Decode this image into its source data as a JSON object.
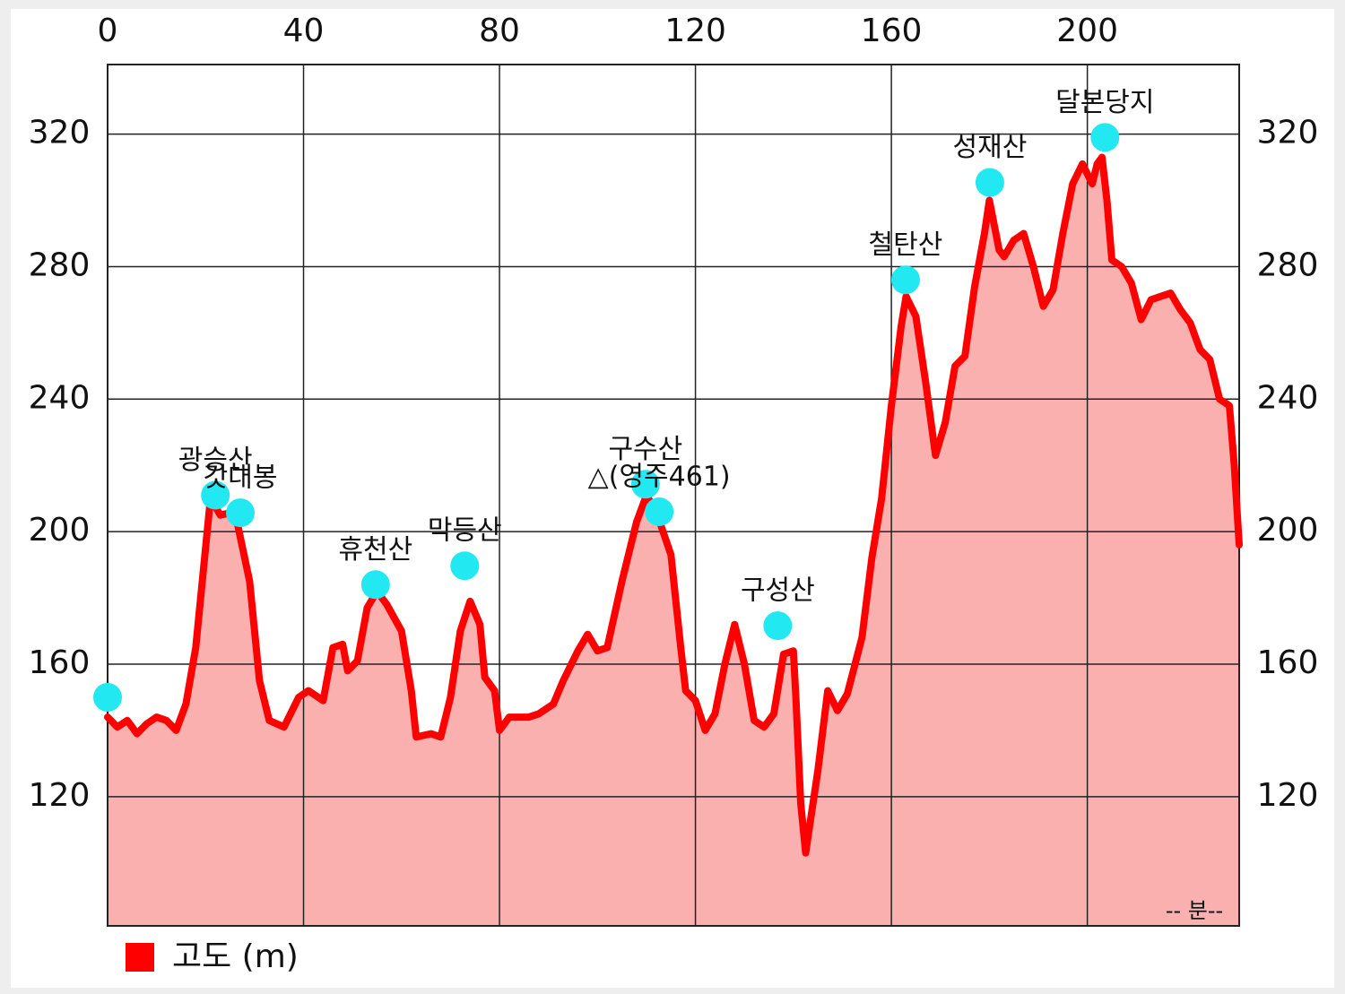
{
  "chart_data": {
    "type": "area",
    "xlim": [
      0,
      231
    ],
    "ylim": [
      81,
      341
    ],
    "xticks": [
      0,
      40,
      80,
      120,
      160,
      200
    ],
    "yticks": [
      120,
      160,
      200,
      240,
      280,
      320
    ],
    "x_label": "-- 분--",
    "grid": true,
    "legend": "bottom-left",
    "series": [
      {
        "name": "고도 (m)",
        "color": "#ff0000",
        "fill_color": "#fbb0b0",
        "x": [
          0,
          2,
          4,
          6,
          8,
          10,
          12,
          14,
          16,
          18,
          21,
          23,
          26,
          29,
          31,
          33,
          36,
          39,
          41,
          44,
          46,
          48,
          49,
          51,
          53,
          55,
          57,
          60,
          62,
          63,
          66,
          68,
          70,
          72,
          74,
          76,
          77,
          79,
          80,
          82,
          86,
          88,
          91,
          93,
          96,
          98,
          100,
          102,
          105,
          108,
          110,
          112,
          115,
          117,
          118,
          120,
          122,
          124,
          126,
          128,
          130,
          132,
          134,
          136,
          138,
          140,
          140.5,
          141.5,
          142.5,
          144,
          145,
          147,
          149,
          151,
          154,
          156,
          158,
          160,
          162,
          163,
          165,
          167,
          169,
          171,
          173,
          175,
          177,
          179,
          180,
          182,
          183,
          185,
          187,
          189,
          191,
          193,
          195,
          197,
          199,
          201,
          202,
          203,
          204,
          205,
          207,
          209,
          211,
          213,
          215,
          217,
          219,
          221,
          223,
          225,
          227,
          229,
          230,
          231
        ],
        "values": [
          144,
          141,
          143,
          139,
          142,
          144,
          143,
          140,
          148,
          165,
          210,
          205,
          206,
          185,
          155,
          143,
          141,
          150,
          152,
          149,
          165,
          166,
          158,
          161,
          177,
          182,
          178,
          170,
          152,
          138,
          139,
          138,
          150,
          170,
          179,
          172,
          156,
          152,
          140,
          144,
          144,
          145,
          148,
          155,
          164,
          169,
          164,
          165,
          185,
          203,
          211,
          206,
          193,
          165,
          152,
          149,
          140,
          145,
          160,
          172,
          160,
          143,
          141,
          145,
          163,
          164,
          150,
          118,
          103,
          118,
          128,
          152,
          146,
          151,
          168,
          192,
          210,
          238,
          262,
          271,
          265,
          245,
          223,
          233,
          250,
          253,
          274,
          290,
          300,
          285,
          283,
          288,
          290,
          280,
          268,
          273,
          290,
          305,
          311,
          305,
          311,
          313,
          300,
          282,
          280,
          275,
          264,
          270,
          271,
          272,
          267,
          263,
          255,
          252,
          240,
          238,
          220,
          196
        ]
      }
    ],
    "points": {
      "color": "#22e8f2",
      "x": [
        0,
        22,
        27.1,
        54.7,
        72.9,
        109.8,
        112.6,
        136.8,
        162.9,
        180.1,
        203.6
      ],
      "values": [
        150,
        211,
        205.7,
        184,
        189.7,
        214.3,
        206,
        171.6,
        276,
        305.4,
        319
      ],
      "labels": [
        null,
        "광승산",
        "갓대봉",
        "휴천산",
        "막등산",
        "구수산",
        "△(영주461)",
        "구성산",
        "철탄산",
        "성재산",
        "달본당지"
      ]
    }
  }
}
